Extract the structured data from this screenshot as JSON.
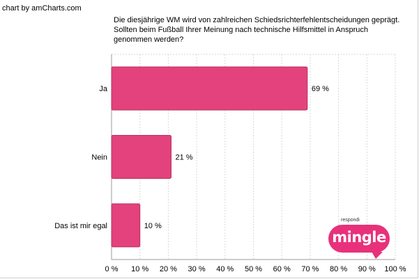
{
  "credit": "chart by amCharts.com",
  "logo": {
    "small_text": "respondi",
    "word": "mingle"
  },
  "colors": {
    "bar": "#e3427c",
    "bar_edge": "#b8325f",
    "grid": "#d9d9d9",
    "axis": "#9a9a9a"
  },
  "chart_data": {
    "type": "bar",
    "orientation": "horizontal",
    "title": "Die diesjährige WM wird von zahlreichen Schiedsrichterfehlentscheidungen geprägt. Sollten beim Fußball Ihrer Meinung nach technische Hilfsmittel in Anspruch genommen werden?",
    "categories": [
      "Ja",
      "Nein",
      "Das ist mir egal"
    ],
    "values": [
      69,
      21,
      10
    ],
    "value_labels": [
      "69 %",
      "21 %",
      "10 %"
    ],
    "xlim": [
      0,
      100
    ],
    "x_ticks": [
      "0 %",
      "10 %",
      "20 %",
      "30 %",
      "40 %",
      "50 %",
      "60 %",
      "70 %",
      "80 %",
      "90 %",
      "100 %"
    ],
    "grid": true
  }
}
